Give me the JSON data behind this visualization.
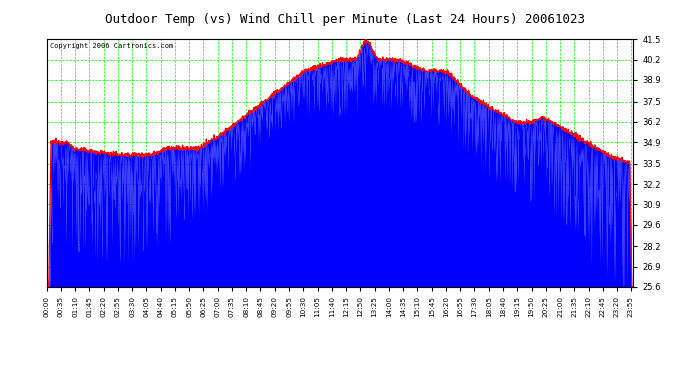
{
  "title": "Outdoor Temp (vs) Wind Chill per Minute (Last 24 Hours) 20061023",
  "copyright": "Copyright 2006 Cartronics.com",
  "title_fontsize": 9,
  "background_color": "#ffffff",
  "plot_bg_color": "#ffffff",
  "grid_color": "#00ff00",
  "blue_color": "#0000ff",
  "red_color": "#ff0000",
  "ylim": [
    25.6,
    41.5
  ],
  "yticks": [
    25.6,
    26.9,
    28.2,
    29.6,
    30.9,
    32.2,
    33.5,
    34.9,
    36.2,
    37.5,
    38.9,
    40.2,
    41.5
  ],
  "n_minutes": 1440,
  "x_tick_labels": [
    "00:00",
    "00:35",
    "01:10",
    "01:45",
    "02:20",
    "02:55",
    "03:30",
    "04:05",
    "04:40",
    "05:15",
    "05:50",
    "06:25",
    "07:00",
    "07:35",
    "08:10",
    "08:45",
    "09:20",
    "09:55",
    "10:30",
    "11:05",
    "11:40",
    "12:15",
    "12:50",
    "13:25",
    "14:00",
    "14:35",
    "15:10",
    "15:45",
    "16:20",
    "16:55",
    "17:30",
    "18:05",
    "18:40",
    "19:15",
    "19:50",
    "20:25",
    "21:00",
    "21:35",
    "22:10",
    "22:45",
    "23:20",
    "23:55"
  ],
  "x_tick_positions_fraction": [
    0.0,
    0.0243,
    0.0486,
    0.0729,
    0.0972,
    0.1215,
    0.1458,
    0.1701,
    0.1944,
    0.2187,
    0.243,
    0.2673,
    0.2917,
    0.316,
    0.3403,
    0.3646,
    0.3889,
    0.4132,
    0.4375,
    0.4618,
    0.4861,
    0.5104,
    0.5347,
    0.559,
    0.5833,
    0.6076,
    0.6319,
    0.6562,
    0.6805,
    0.7048,
    0.7292,
    0.7535,
    0.7778,
    0.8021,
    0.8264,
    0.8507,
    0.875,
    0.8993,
    0.9236,
    0.9479,
    0.9722,
    0.9965
  ]
}
